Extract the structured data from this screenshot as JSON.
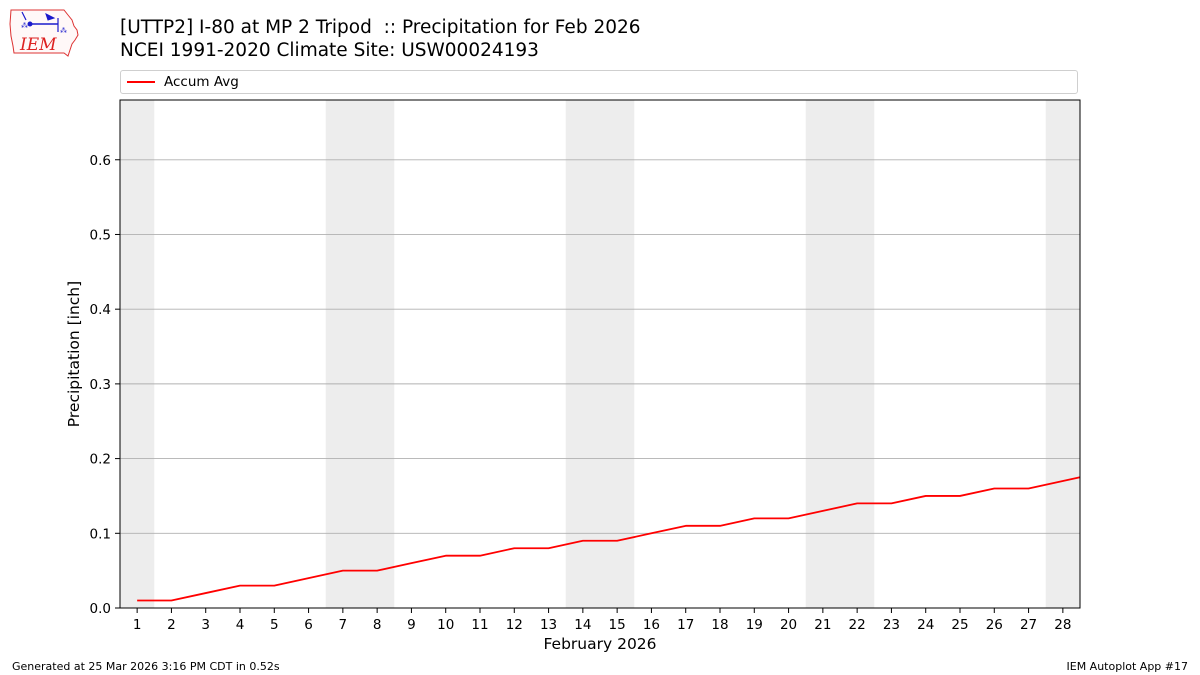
{
  "header": {
    "title": "[UTTP2] I-80 at MP 2 Tripod  :: Precipitation for Feb 2026",
    "subtitle": "NCEI 1991-2020 Climate Site: USW00024193",
    "logo_text": "IEM"
  },
  "footer": {
    "generated": "Generated at 25 Mar 2026 3:16 PM CDT in 0.52s",
    "app": "IEM Autoplot App #17"
  },
  "chart_data": {
    "type": "line",
    "title": "[UTTP2] I-80 at MP 2 Tripod  :: Precipitation for Feb 2026",
    "subtitle": "NCEI 1991-2020 Climate Site: USW00024193",
    "xlabel": "February 2026",
    "ylabel": "Precipitation [inch]",
    "x": [
      1,
      2,
      3,
      4,
      5,
      6,
      7,
      8,
      9,
      10,
      11,
      12,
      13,
      14,
      15,
      16,
      17,
      18,
      19,
      20,
      21,
      22,
      23,
      24,
      25,
      26,
      27,
      28
    ],
    "x_tick_labels": [
      "1",
      "2",
      "3",
      "4",
      "5",
      "6",
      "7",
      "8",
      "9",
      "10",
      "11",
      "12",
      "13",
      "14",
      "15",
      "16",
      "17",
      "18",
      "19",
      "20",
      "21",
      "22",
      "23",
      "24",
      "25",
      "26",
      "27",
      "28"
    ],
    "xlim": [
      0.5,
      28.5
    ],
    "ylim": [
      0,
      0.68
    ],
    "y_ticks": [
      0.0,
      0.1,
      0.2,
      0.3,
      0.4,
      0.5,
      0.6
    ],
    "y_tick_labels": [
      "0.0",
      "0.1",
      "0.2",
      "0.3",
      "0.4",
      "0.5",
      "0.6"
    ],
    "grid": "horizontal",
    "legend_position": "top",
    "weekend_shading": [
      [
        0.5,
        1.5
      ],
      [
        6.5,
        8.5
      ],
      [
        13.5,
        15.5
      ],
      [
        20.5,
        22.5
      ],
      [
        27.5,
        28.5
      ]
    ],
    "series": [
      {
        "name": "Accum Avg",
        "color": "#ff0000",
        "values": [
          0.01,
          0.01,
          0.02,
          0.03,
          0.03,
          0.04,
          0.05,
          0.05,
          0.06,
          0.07,
          0.07,
          0.08,
          0.08,
          0.09,
          0.09,
          0.1,
          0.11,
          0.11,
          0.12,
          0.12,
          0.13,
          0.14,
          0.14,
          0.15,
          0.15,
          0.16,
          0.16,
          0.17
        ],
        "end_value": 0.175
      }
    ],
    "colors": {
      "shade": "#ededed",
      "grid": "#b0b0b0"
    }
  }
}
